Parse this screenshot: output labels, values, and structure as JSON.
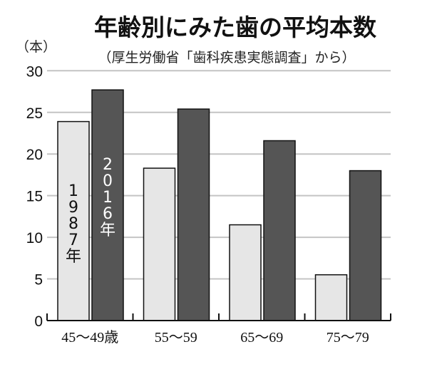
{
  "chart_data": {
    "type": "bar",
    "title": "年齢別にみた歯の平均本数",
    "subtitle": "（厚生労働省「歯科疾患実態調査」から）",
    "ylabel": "（本）",
    "xlabel": "",
    "ylim": [
      0,
      30
    ],
    "yticks": [
      "0",
      "5",
      "10",
      "15",
      "20",
      "25",
      "30"
    ],
    "grid": true,
    "categories": [
      "45～49歳",
      "55～59",
      "65～69",
      "75～79"
    ],
    "series": [
      {
        "name": "1987年",
        "label_chars": [
          "1",
          "9",
          "8",
          "7",
          "年"
        ],
        "color": "#e6e6e6",
        "values": [
          23.9,
          18.3,
          11.5,
          5.5
        ]
      },
      {
        "name": "2016年",
        "label_chars": [
          "2",
          "0",
          "1",
          "6",
          "年"
        ],
        "color": "#555555",
        "values": [
          27.7,
          25.4,
          21.6,
          18.0
        ]
      }
    ]
  }
}
